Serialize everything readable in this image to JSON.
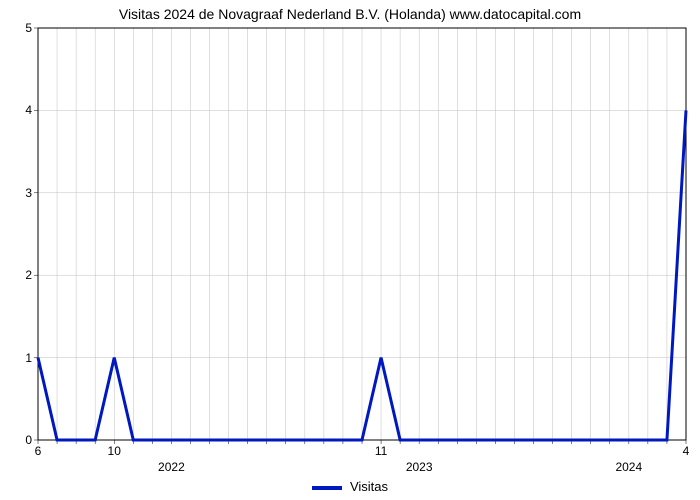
{
  "chart": {
    "type": "line",
    "title": "Visitas 2024 de Novagraaf Nederland B.V. (Holanda) www.datocapital.com",
    "title_fontsize": 14,
    "title_color": "#000000",
    "background_color": "#ffffff",
    "plot_border_color": "#000000",
    "grid_color": "#bfbfbf",
    "grid_linewidth": 0.5,
    "minor_grid_color": "#e0e0e0",
    "minor_grid_linewidth": 0.5,
    "line_color": "#0018c0",
    "line_width": 3,
    "y": {
      "lim": [
        0,
        5
      ],
      "ticks": [
        0,
        1,
        2,
        3,
        4,
        5
      ],
      "label_fontsize": 12,
      "label_color": "#000000"
    },
    "x": {
      "n_points": 35,
      "primary_ticks": [
        {
          "i": 0,
          "label": "6"
        },
        {
          "i": 4,
          "label": "10"
        },
        {
          "i": 18,
          "label": "11"
        },
        {
          "i": 34,
          "label": "4"
        }
      ],
      "minor_tick_every": 1,
      "year_ticks": [
        {
          "i": 7,
          "label": "2022"
        },
        {
          "i": 20,
          "label": "2023"
        },
        {
          "i": 31,
          "label": "2024"
        }
      ],
      "label_fontsize": 12,
      "label_color": "#000000"
    },
    "series": [
      {
        "name": "Visitas",
        "values": [
          1,
          0,
          0,
          0,
          1,
          0,
          0,
          0,
          0,
          0,
          0,
          0,
          0,
          0,
          0,
          0,
          0,
          0,
          1,
          0,
          0,
          0,
          0,
          0,
          0,
          0,
          0,
          0,
          0,
          0,
          0,
          0,
          0,
          0,
          4
        ]
      }
    ],
    "legend": {
      "label": "Visitas",
      "fontsize": 13,
      "color": "#000000",
      "swatch_width": 30,
      "swatch_height": 4
    }
  }
}
